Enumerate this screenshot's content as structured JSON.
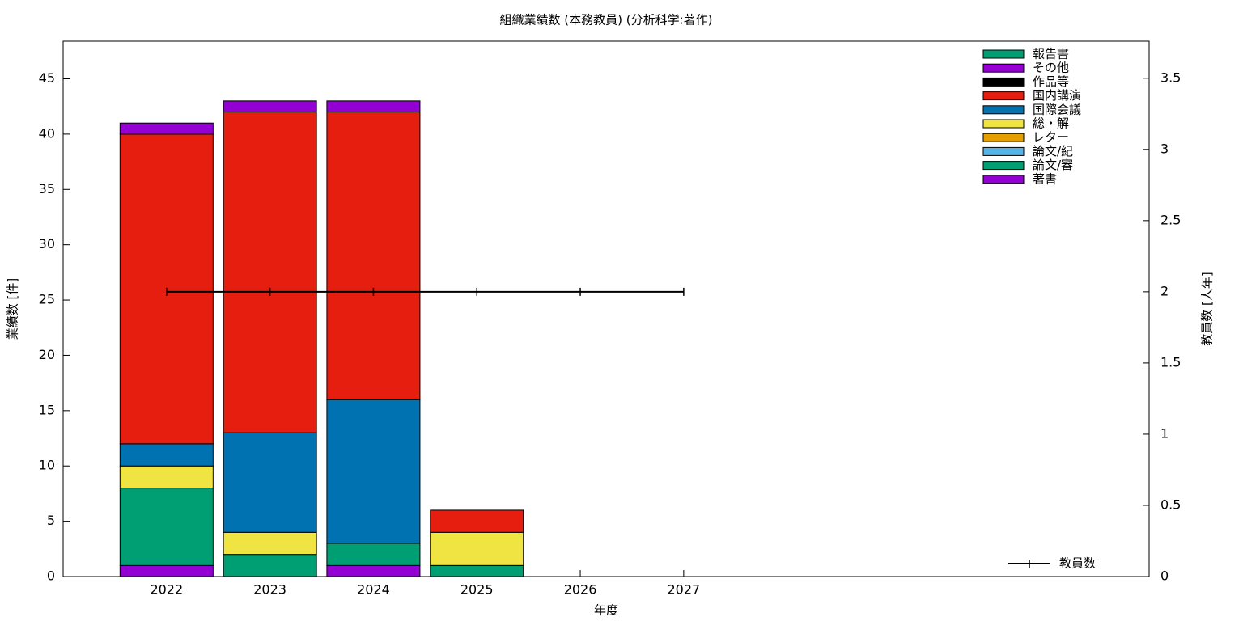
{
  "chart_data": {
    "type": "bar",
    "stacked": true,
    "title": "組織業績数 (本務教員) (分析科学:著作)",
    "xlabel": "年度",
    "ylabel": "業績数 [件]",
    "y2label": "教員数 [人年]",
    "x": [
      2022,
      2023,
      2024,
      2025,
      2026,
      2027
    ],
    "xlim": [
      2021,
      2031.5
    ],
    "xticks": [
      2022,
      2023,
      2024,
      2025,
      2026,
      2027
    ],
    "ylim": [
      0,
      48.4
    ],
    "yticks": [
      0,
      5,
      10,
      15,
      20,
      25,
      30,
      35,
      40,
      45
    ],
    "y2lim": [
      0,
      3.76
    ],
    "y2ticks": [
      0,
      0.5,
      1,
      1.5,
      2,
      2.5,
      3,
      3.5
    ],
    "bar_width": 0.9,
    "grid": false,
    "legend": "top-right",
    "series": [
      {
        "name": "著書",
        "color": "#9400d3",
        "values": [
          1,
          0,
          1,
          0,
          0,
          0
        ]
      },
      {
        "name": "論文/審",
        "color": "#009e73",
        "values": [
          7,
          2,
          2,
          1,
          0,
          0
        ]
      },
      {
        "name": "論文/紀",
        "color": "#56b4e9",
        "values": [
          0,
          0,
          0,
          0,
          0,
          0
        ]
      },
      {
        "name": "レター",
        "color": "#e69f00",
        "values": [
          0,
          0,
          0,
          0,
          0,
          0
        ]
      },
      {
        "name": "総・解",
        "color": "#f0e442",
        "values": [
          2,
          2,
          0,
          3,
          0,
          0
        ]
      },
      {
        "name": "国際会議",
        "color": "#0072b2",
        "values": [
          2,
          9,
          13,
          0,
          0,
          0
        ]
      },
      {
        "name": "国内講演",
        "color": "#e51e10",
        "values": [
          28,
          29,
          26,
          2,
          0,
          0
        ]
      },
      {
        "name": "作品等",
        "color": "#000000",
        "values": [
          0,
          0,
          0,
          0,
          0,
          0
        ]
      },
      {
        "name": "その他",
        "color": "#9400d3",
        "values": [
          1,
          1,
          1,
          0,
          0,
          0
        ]
      },
      {
        "name": "報告書",
        "color": "#009e73",
        "values": [
          0,
          0,
          0,
          0,
          0,
          0
        ]
      },
      {
        "name": "教員数",
        "color": "#000000",
        "type": "line",
        "axis": "y2",
        "values": [
          2,
          2,
          2,
          2,
          2,
          2
        ]
      }
    ]
  }
}
